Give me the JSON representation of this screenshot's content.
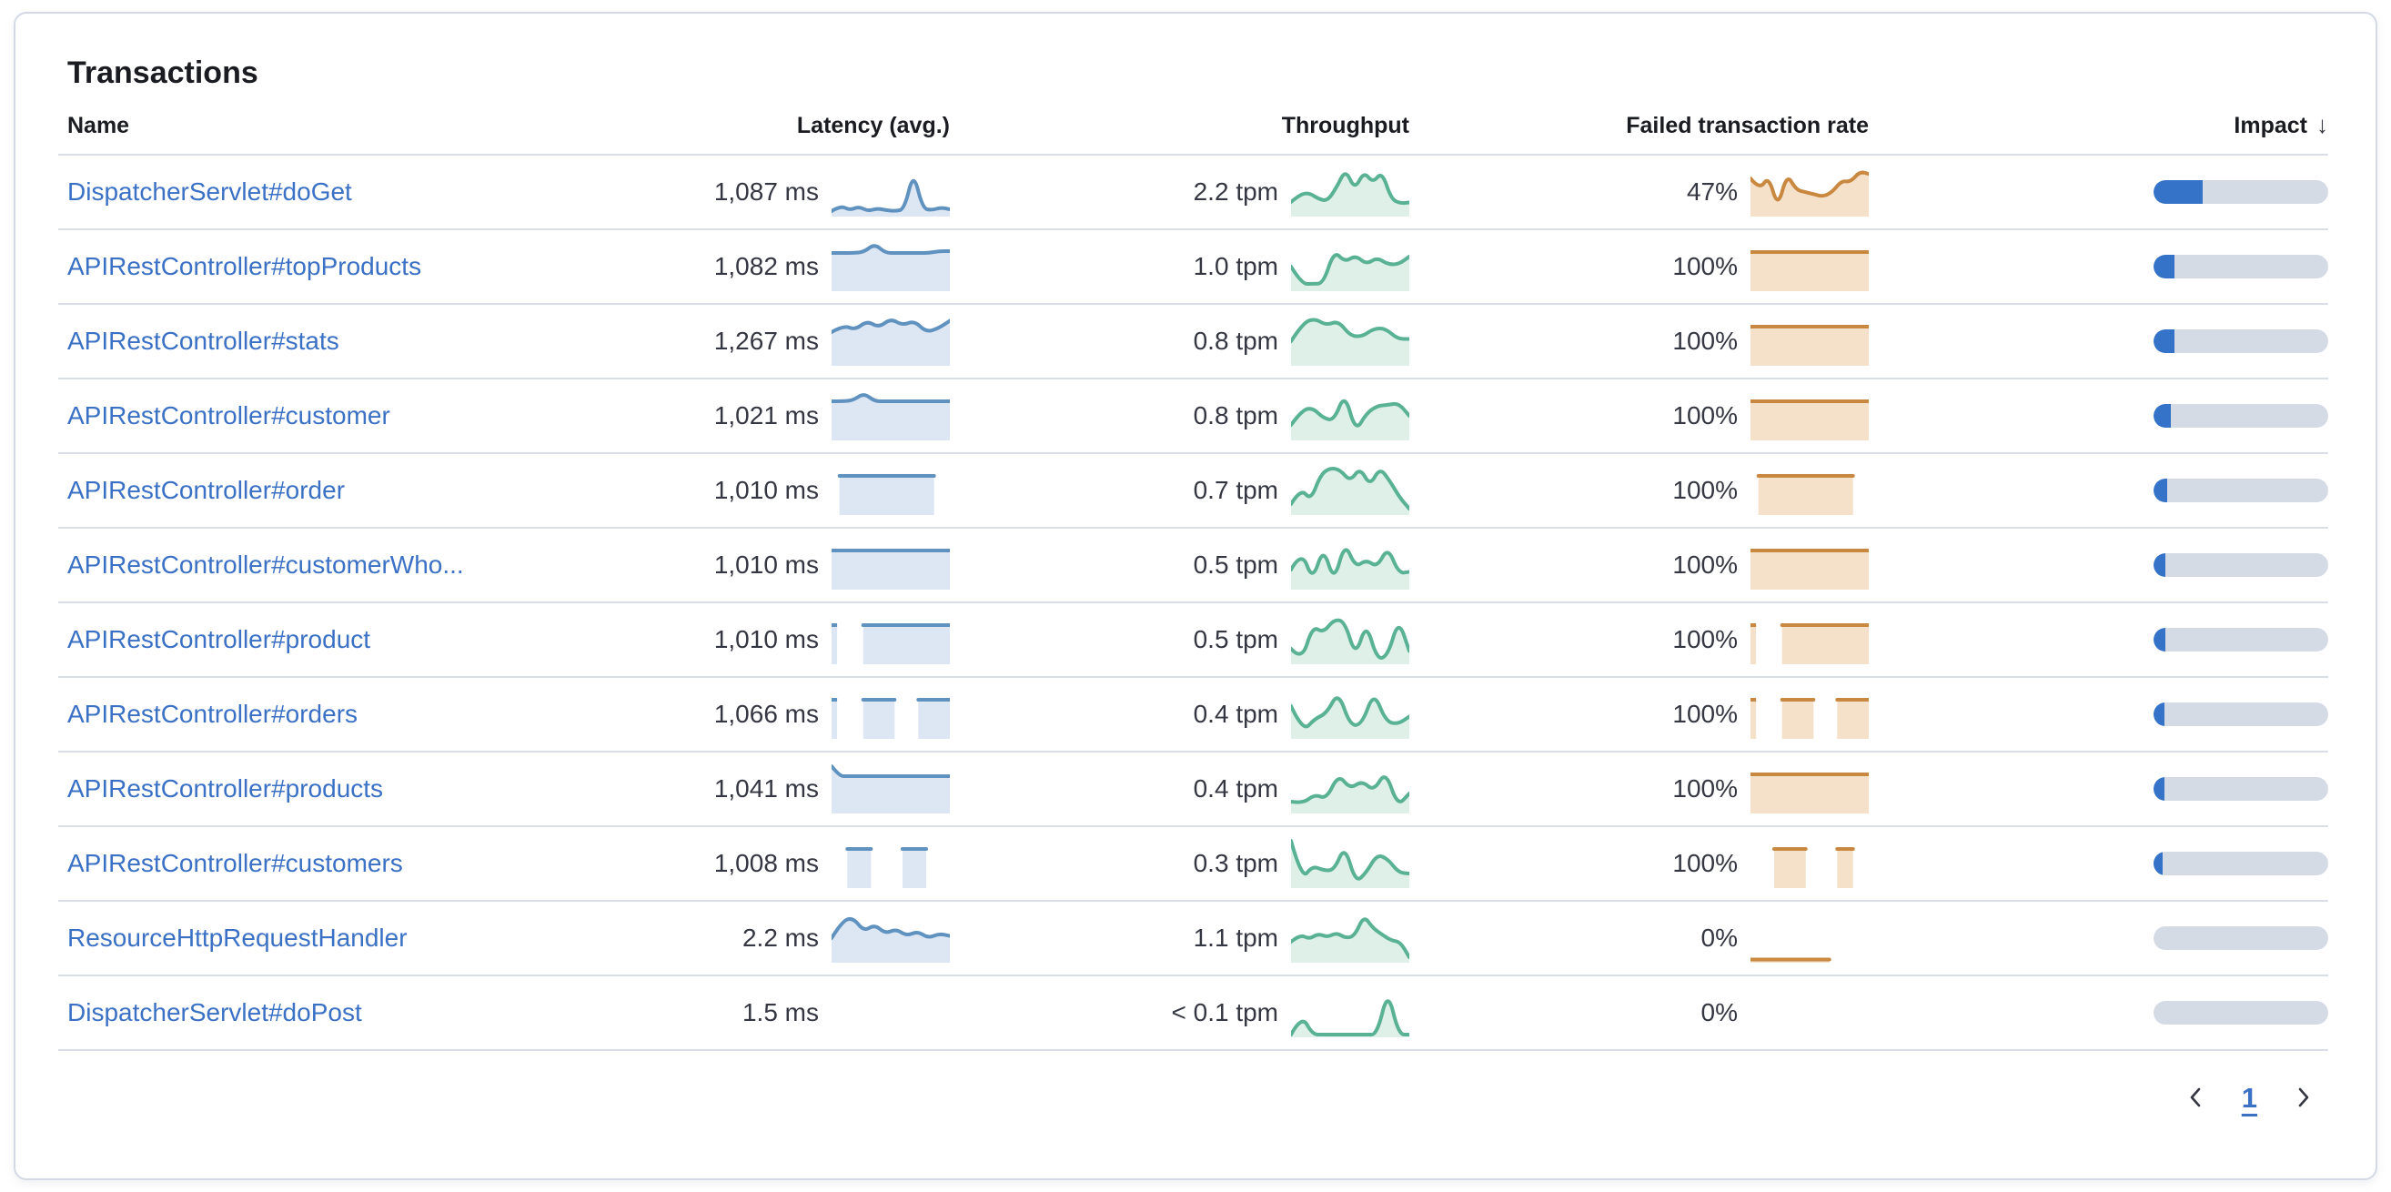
{
  "title": "Transactions",
  "colors": {
    "link": "#3a71c5",
    "text": "#343741",
    "heading": "#1a1c21",
    "divider": "#d9dfe9",
    "latency_line": "#6092c0",
    "latency_fill": "#dde7f3",
    "throughput_line": "#59b294",
    "throughput_fill": "#def0e8",
    "error_line": "#c9883f",
    "error_fill": "#f5e1ca",
    "impact_fill": "#3573c8",
    "impact_track": "#d5dbe5"
  },
  "table": {
    "columns": [
      {
        "id": "name",
        "label": "Name"
      },
      {
        "id": "latency",
        "label": "Latency (avg.)"
      },
      {
        "id": "throughput",
        "label": "Throughput"
      },
      {
        "id": "error_rate",
        "label": "Failed transaction rate"
      },
      {
        "id": "impact",
        "label": "Impact",
        "sorted": "desc",
        "sort_icon": "↓"
      }
    ],
    "rows": [
      {
        "name": "DispatcherServlet#doGet",
        "latency": "1,087 ms",
        "throughput": "2.2 tpm",
        "error_rate": "47%",
        "impact_pct": 28,
        "latency_spark": [
          0.08,
          0.2,
          0.1,
          0.18,
          0.08,
          0.14,
          0.1,
          0.08,
          0.12,
          0.95,
          0.14,
          0.1,
          0.16,
          0.12
        ],
        "throughput_spark": [
          0.28,
          0.45,
          0.48,
          0.35,
          0.3,
          0.6,
          1.0,
          0.55,
          0.95,
          0.7,
          0.95,
          0.35,
          0.25,
          0.27
        ],
        "error_spark": [
          0.8,
          0.55,
          0.85,
          0.15,
          0.9,
          0.55,
          0.5,
          0.45,
          0.4,
          0.5,
          0.75,
          0.72,
          0.95,
          0.9
        ]
      },
      {
        "name": "APIRestController#topProducts",
        "latency": "1,082 ms",
        "throughput": "1.0 tpm",
        "error_rate": "100%",
        "impact_pct": 12,
        "latency_spark": [
          0.8,
          0.8,
          0.8,
          0.82,
          1.0,
          0.8,
          0.8,
          0.8,
          0.8,
          0.8,
          0.84,
          0.84
        ],
        "throughput_spark": [
          0.5,
          0.12,
          0.12,
          0.13,
          0.85,
          0.6,
          0.75,
          0.55,
          0.7,
          0.55,
          0.55,
          0.72
        ],
        "error_spark": [
          0.82,
          0.82,
          0.82,
          0.82,
          0.82,
          0.82,
          0.82,
          0.82,
          0.82,
          0.82,
          0.82,
          0.82,
          0.82,
          0.82,
          0.82,
          0.82
        ]
      },
      {
        "name": "APIRestController#stats",
        "latency": "1,267 ms",
        "throughput": "0.8 tpm",
        "error_rate": "100%",
        "impact_pct": 12,
        "latency_spark": [
          0.7,
          0.85,
          0.75,
          0.95,
          0.8,
          1.0,
          0.85,
          0.95,
          0.7,
          0.78,
          0.95
        ],
        "throughput_spark": [
          0.5,
          0.9,
          1.0,
          0.85,
          0.95,
          0.62,
          0.6,
          0.78,
          0.78,
          0.55,
          0.55
        ],
        "error_spark": [
          0.82,
          0.82,
          0.82,
          0.82,
          0.82,
          0.82,
          0.82,
          0.82,
          0.82,
          0.82,
          0.82,
          0.82,
          0.82,
          0.82,
          0.82,
          0.82
        ]
      },
      {
        "name": "APIRestController#customer",
        "latency": "1,021 ms",
        "throughput": "0.8 tpm",
        "error_rate": "100%",
        "impact_pct": 10,
        "latency_spark": [
          0.82,
          0.82,
          0.84,
          1.0,
          0.82,
          0.82,
          0.82,
          0.82,
          0.82,
          0.82,
          0.82,
          0.82
        ],
        "throughput_spark": [
          0.3,
          0.62,
          0.68,
          0.45,
          0.4,
          1.0,
          0.15,
          0.55,
          0.72,
          0.74,
          0.78,
          0.5
        ],
        "error_spark": [
          0.82,
          0.82,
          0.82,
          0.82,
          0.82,
          0.82,
          0.82,
          0.82,
          0.82,
          0.82,
          0.82,
          0.82,
          0.82,
          0.82,
          0.82,
          0.82
        ]
      },
      {
        "name": "APIRestController#order",
        "latency": "1,010 ms",
        "throughput": "0.7 tpm",
        "error_rate": "100%",
        "impact_pct": 8,
        "latency_spark": [
          null,
          0.82,
          0.82,
          0.82,
          0.82,
          0.82,
          0.82,
          0.82,
          0.82,
          0.82,
          0.82,
          0.82,
          0.82,
          0.82,
          null,
          null
        ],
        "throughput_spark": [
          0.2,
          0.55,
          0.28,
          0.85,
          1.0,
          0.95,
          0.7,
          1.0,
          0.6,
          1.0,
          0.72,
          0.35,
          0.1
        ],
        "error_spark": [
          null,
          0.82,
          0.82,
          0.82,
          0.82,
          0.82,
          0.82,
          0.82,
          0.82,
          0.82,
          0.82,
          0.82,
          0.82,
          0.82,
          null,
          null
        ]
      },
      {
        "name": "APIRestController#customerWho...",
        "latency": "1,010 ms",
        "throughput": "0.5 tpm",
        "error_rate": "100%",
        "impact_pct": 7,
        "latency_spark": [
          0.82,
          0.82,
          0.82,
          0.82,
          0.82,
          0.82,
          0.82,
          0.82,
          0.82,
          0.82,
          0.82,
          0.82,
          0.82,
          0.82,
          0.82,
          0.82
        ],
        "throughput_spark": [
          0.4,
          0.82,
          0.15,
          0.9,
          0.12,
          1.0,
          0.45,
          0.62,
          0.45,
          0.9,
          0.32,
          0.35
        ],
        "error_spark": [
          0.82,
          0.82,
          0.82,
          0.82,
          0.82,
          0.82,
          0.82,
          0.82,
          0.82,
          0.82,
          0.82,
          0.82,
          0.82,
          0.82,
          0.82,
          0.82
        ]
      },
      {
        "name": "APIRestController#product",
        "latency": "1,010 ms",
        "throughput": "0.5 tpm",
        "error_rate": "100%",
        "impact_pct": 7,
        "latency_spark": [
          0.82,
          null,
          null,
          null,
          0.82,
          0.82,
          0.82,
          0.82,
          0.82,
          0.82,
          0.82,
          0.82,
          0.82,
          0.82,
          0.82,
          0.82
        ],
        "throughput_spark": [
          0.3,
          0.03,
          0.8,
          0.65,
          0.95,
          0.9,
          0.12,
          0.88,
          0.06,
          0.15,
          0.95,
          0.25
        ],
        "error_spark": [
          0.82,
          null,
          null,
          null,
          0.82,
          0.82,
          0.82,
          0.82,
          0.82,
          0.82,
          0.82,
          0.82,
          0.82,
          0.82,
          0.82,
          0.82
        ]
      },
      {
        "name": "APIRestController#orders",
        "latency": "1,066 ms",
        "throughput": "0.4 tpm",
        "error_rate": "100%",
        "impact_pct": 6,
        "latency_spark": [
          0.82,
          null,
          null,
          null,
          0.82,
          0.82,
          0.82,
          0.82,
          0.82,
          null,
          null,
          0.82,
          0.82,
          0.82,
          0.82,
          0.82
        ],
        "throughput_spark": [
          0.68,
          0.12,
          0.4,
          0.52,
          1.0,
          0.25,
          0.28,
          1.0,
          0.35,
          0.28,
          0.45
        ],
        "error_spark": [
          0.82,
          null,
          null,
          null,
          0.82,
          0.82,
          0.82,
          0.82,
          0.82,
          null,
          null,
          0.82,
          0.82,
          0.82,
          0.82,
          0.82
        ]
      },
      {
        "name": "APIRestController#products",
        "latency": "1,041 ms",
        "throughput": "0.4 tpm",
        "error_rate": "100%",
        "impact_pct": 6,
        "latency_spark": [
          1.0,
          0.78,
          0.78,
          0.78,
          0.78,
          0.78,
          0.78,
          0.78,
          0.78,
          0.78,
          0.78,
          0.78,
          0.78,
          0.78,
          0.78,
          0.78
        ],
        "throughput_spark": [
          0.22,
          0.18,
          0.38,
          0.28,
          0.82,
          0.5,
          0.68,
          0.45,
          0.9,
          0.12,
          0.4
        ],
        "error_spark": [
          0.82,
          0.82,
          0.82,
          0.82,
          0.82,
          0.82,
          0.82,
          0.82,
          0.82,
          0.82,
          0.82,
          0.82,
          0.82,
          0.82,
          0.82,
          0.82
        ]
      },
      {
        "name": "APIRestController#customers",
        "latency": "1,008 ms",
        "throughput": "0.3 tpm",
        "error_rate": "100%",
        "impact_pct": 5,
        "latency_spark": [
          null,
          null,
          0.82,
          0.82,
          0.82,
          0.82,
          null,
          null,
          null,
          0.82,
          0.82,
          0.82,
          0.82,
          null,
          null,
          null
        ],
        "throughput_spark": [
          1.0,
          0.15,
          0.45,
          0.35,
          0.35,
          0.9,
          0.08,
          0.3,
          0.7,
          0.6,
          0.3,
          0.28
        ],
        "error_spark": [
          null,
          null,
          null,
          0.82,
          0.82,
          0.82,
          0.82,
          0.82,
          null,
          null,
          null,
          0.82,
          0.82,
          0.82,
          null,
          null
        ]
      },
      {
        "name": "ResourceHttpRequestHandler",
        "latency": "2.2 ms",
        "throughput": "1.1 tpm",
        "error_rate": "0%",
        "impact_pct": 0,
        "latency_spark": [
          0.5,
          0.88,
          0.95,
          0.65,
          0.8,
          0.6,
          0.7,
          0.55,
          0.65,
          0.5,
          0.6,
          0.55
        ],
        "throughput_spark": [
          0.42,
          0.58,
          0.48,
          0.6,
          0.52,
          0.62,
          0.5,
          0.55,
          1.0,
          0.72,
          0.58,
          0.45,
          0.42,
          0.08
        ],
        "error_spark": [
          0.03,
          0.03,
          0.03,
          0.03,
          0.03,
          0.03,
          0.03,
          0.03,
          0.03,
          0.03,
          0.03,
          null,
          null,
          null,
          null,
          null
        ]
      },
      {
        "name": "DispatcherServlet#doPost",
        "latency": "1.5 ms",
        "throughput": "< 0.1 tpm",
        "error_rate": "0%",
        "impact_pct": 0,
        "latency_spark": null,
        "throughput_spark": [
          0.02,
          0.45,
          0.02,
          0.02,
          0.02,
          0.02,
          0.02,
          0.02,
          0.02,
          1.0,
          0.02,
          0.02
        ],
        "error_spark": null
      }
    ]
  },
  "pagination": {
    "page": "1"
  }
}
